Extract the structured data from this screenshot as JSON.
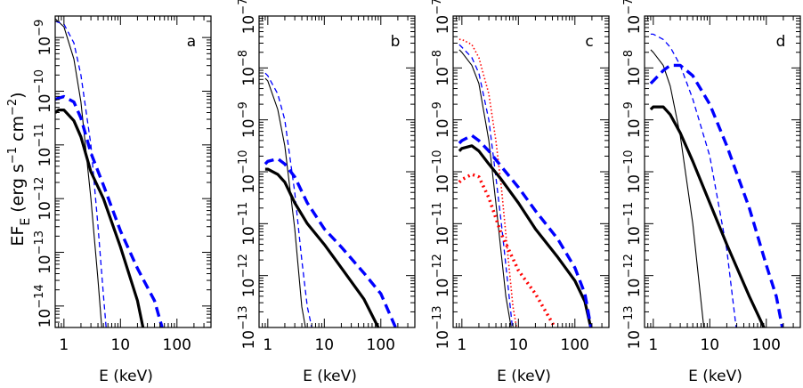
{
  "figure": {
    "ylabel": "EF_E (erg s^-1 cm^-2)",
    "ylabel_parts": {
      "main": "EF",
      "sub": "E",
      "open": " (erg s",
      "exp1": "−1",
      "mid": " cm",
      "exp2": "−2",
      "close": ")"
    },
    "xlabel": "E (keV)",
    "x_tick_labels": [
      "1",
      "10",
      "100"
    ],
    "tick_base": "10"
  },
  "chart_data": [
    {
      "type": "line",
      "panel": "a",
      "xscale": "log",
      "yscale": "log",
      "xlim": [
        0.7,
        400
      ],
      "ylim_exp": [
        -14.4,
        -8.6
      ],
      "ytick_exponents": [
        -14,
        -13,
        -12,
        -11,
        -10,
        -9
      ],
      "series": [
        {
          "style": "thin-solid",
          "color": "#000000",
          "x": [
            0.7,
            1.0,
            1.5,
            2,
            3,
            4,
            5
          ],
          "y_exp": [
            -8.65,
            -8.8,
            -9.4,
            -10.2,
            -12.0,
            -13.5,
            -14.8
          ]
        },
        {
          "style": "thin-dashed",
          "color": "#0000ff",
          "x": [
            0.7,
            1.0,
            1.5,
            2,
            3,
            4,
            5,
            6
          ],
          "y_exp": [
            -8.7,
            -8.75,
            -9.1,
            -9.7,
            -11.0,
            -12.5,
            -13.8,
            -14.8
          ]
        },
        {
          "style": "thick-solid",
          "color": "#000000",
          "x": [
            0.7,
            0.8,
            1,
            1.5,
            2,
            3,
            5,
            10,
            20,
            30
          ],
          "y_exp": [
            -10.4,
            -10.35,
            -10.35,
            -10.55,
            -10.85,
            -11.5,
            -12.0,
            -12.9,
            -13.9,
            -14.8
          ]
        },
        {
          "style": "thick-dashed",
          "color": "#0000ff",
          "x": [
            0.7,
            1,
            1.5,
            2,
            3,
            5,
            10,
            20,
            40,
            70
          ],
          "y_exp": [
            -10.15,
            -10.1,
            -10.2,
            -10.5,
            -11.15,
            -11.75,
            -12.6,
            -13.3,
            -13.9,
            -14.8
          ]
        }
      ]
    },
    {
      "type": "line",
      "panel": "b",
      "xscale": "log",
      "yscale": "log",
      "xlim": [
        0.7,
        400
      ],
      "ylim_exp": [
        -13,
        -7
      ],
      "ytick_exponents": [
        -13,
        -12,
        -11,
        -10,
        -9,
        -8,
        -7
      ],
      "series": [
        {
          "style": "thin-solid",
          "color": "#000000",
          "x": [
            0.9,
            1.0,
            1.5,
            2,
            3,
            4,
            5
          ],
          "y_exp": [
            -8.2,
            -8.25,
            -8.8,
            -9.5,
            -11.1,
            -12.6,
            -13.2
          ]
        },
        {
          "style": "thin-dashed",
          "color": "#0000ff",
          "x": [
            0.9,
            1.0,
            1.5,
            2,
            3,
            4,
            5,
            6,
            7
          ],
          "y_exp": [
            -8.1,
            -8.15,
            -8.5,
            -9.0,
            -10.4,
            -11.7,
            -12.6,
            -13.0,
            -13.3
          ]
        },
        {
          "style": "thick-solid",
          "color": "#000000",
          "x": [
            0.9,
            1,
            1.5,
            2,
            3,
            5,
            10,
            20,
            50,
            100
          ],
          "y_exp": [
            -9.95,
            -9.95,
            -10.05,
            -10.2,
            -10.6,
            -11.0,
            -11.4,
            -11.85,
            -12.45,
            -13.1
          ]
        },
        {
          "style": "thick-dashed",
          "color": "#0000ff",
          "x": [
            0.9,
            1,
            1.5,
            2,
            3,
            5,
            10,
            20,
            50,
            100,
            200
          ],
          "y_exp": [
            -9.85,
            -9.8,
            -9.75,
            -9.85,
            -10.1,
            -10.6,
            -11.1,
            -11.45,
            -11.95,
            -12.35,
            -13.1
          ]
        }
      ]
    },
    {
      "type": "line",
      "panel": "c",
      "xscale": "log",
      "yscale": "log",
      "xlim": [
        0.7,
        400
      ],
      "ylim_exp": [
        -13,
        -7
      ],
      "ytick_exponents": [
        -13,
        -12,
        -11,
        -10,
        -9,
        -8,
        -7
      ],
      "series": [
        {
          "style": "thin-solid",
          "color": "#000000",
          "x": [
            0.9,
            1.0,
            1.5,
            2,
            3,
            4,
            5,
            6,
            8
          ],
          "y_exp": [
            -7.65,
            -7.7,
            -7.95,
            -8.3,
            -9.4,
            -10.6,
            -11.6,
            -12.4,
            -13.2
          ]
        },
        {
          "style": "thin-dashed",
          "color": "#0000ff",
          "x": [
            0.9,
            1.0,
            1.5,
            2,
            3,
            4,
            5,
            6,
            8
          ],
          "y_exp": [
            -7.55,
            -7.6,
            -7.8,
            -8.1,
            -9.0,
            -10.1,
            -11.0,
            -11.8,
            -13.1
          ]
        },
        {
          "style": "thin-dotted",
          "color": "#ff0000",
          "x": [
            0.9,
            1.0,
            1.5,
            2,
            3,
            4,
            5,
            6,
            8,
            10
          ],
          "y_exp": [
            -7.45,
            -7.45,
            -7.55,
            -7.8,
            -8.5,
            -9.4,
            -10.3,
            -11.2,
            -12.6,
            -13.2
          ]
        },
        {
          "style": "thick-solid",
          "color": "#000000",
          "x": [
            0.9,
            1,
            1.5,
            2,
            3,
            5,
            10,
            20,
            50,
            100,
            150,
            200
          ],
          "y_exp": [
            -9.6,
            -9.55,
            -9.5,
            -9.6,
            -9.85,
            -10.15,
            -10.6,
            -11.1,
            -11.65,
            -12.1,
            -12.5,
            -13.1
          ]
        },
        {
          "style": "thick-dashed",
          "color": "#0000ff",
          "x": [
            0.9,
            1,
            1.5,
            2,
            3,
            5,
            10,
            20,
            50,
            100,
            150,
            200
          ],
          "y_exp": [
            -9.45,
            -9.4,
            -9.3,
            -9.4,
            -9.6,
            -9.9,
            -10.3,
            -10.75,
            -11.3,
            -11.85,
            -12.35,
            -13.1
          ]
        },
        {
          "style": "thick-dotted",
          "color": "#ff0000",
          "x": [
            0.9,
            1,
            1.5,
            2,
            3,
            5,
            10,
            20,
            50
          ],
          "y_exp": [
            -10.2,
            -10.15,
            -10.05,
            -10.1,
            -10.5,
            -11.2,
            -11.9,
            -12.35,
            -13.1
          ]
        }
      ]
    },
    {
      "type": "line",
      "panel": "d",
      "xscale": "log",
      "yscale": "log",
      "xlim": [
        0.7,
        400
      ],
      "ylim_exp": [
        -13,
        -7
      ],
      "ytick_exponents": [
        -13,
        -12,
        -11,
        -10,
        -9,
        -8,
        -7
      ],
      "series": [
        {
          "style": "thin-solid",
          "color": "#000000",
          "x": [
            0.9,
            1.0,
            1.5,
            2,
            3,
            5,
            8
          ],
          "y_exp": [
            -7.65,
            -7.7,
            -7.95,
            -8.35,
            -9.3,
            -11.0,
            -13.1
          ]
        },
        {
          "style": "thin-dashed",
          "color": "#0000ff",
          "x": [
            0.9,
            1.0,
            1.5,
            2,
            3,
            5,
            10,
            20,
            30
          ],
          "y_exp": [
            -7.35,
            -7.35,
            -7.45,
            -7.6,
            -7.95,
            -8.6,
            -9.7,
            -11.5,
            -13.1
          ]
        },
        {
          "style": "thick-solid",
          "color": "#000000",
          "x": [
            0.9,
            1,
            1.5,
            2,
            3,
            5,
            10,
            20,
            50,
            100
          ],
          "y_exp": [
            -8.8,
            -8.75,
            -8.75,
            -8.9,
            -9.25,
            -9.8,
            -10.6,
            -11.4,
            -12.4,
            -13.1
          ]
        },
        {
          "style": "thick-dashed",
          "color": "#0000ff",
          "x": [
            0.9,
            1,
            1.5,
            2,
            3,
            5,
            10,
            20,
            50,
            100,
            150,
            200
          ],
          "y_exp": [
            -8.3,
            -8.25,
            -8.05,
            -7.95,
            -7.95,
            -8.15,
            -8.7,
            -9.5,
            -10.7,
            -11.8,
            -12.4,
            -13.1
          ]
        }
      ]
    }
  ]
}
